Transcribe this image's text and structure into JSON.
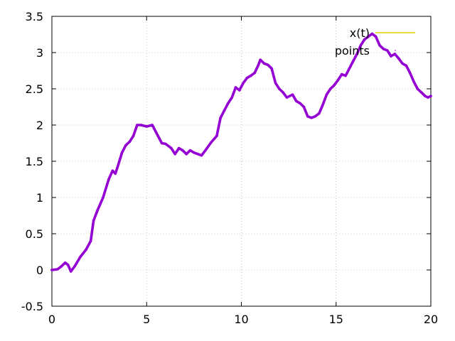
{
  "chart_data": {
    "type": "line",
    "title": "",
    "xlabel": "",
    "ylabel": "",
    "xlim": [
      0,
      20
    ],
    "ylim": [
      -0.5,
      3.5
    ],
    "xticks": [
      0,
      5,
      10,
      15,
      20
    ],
    "xtick_labels": [
      "0",
      "5",
      "10",
      "15",
      "20"
    ],
    "yticks": [
      -0.5,
      0,
      0.5,
      1,
      1.5,
      2,
      2.5,
      3,
      3.5
    ],
    "ytick_labels": [
      "-0.5",
      "0",
      "0.5",
      "1",
      "1.5",
      "2",
      "2.5",
      "3",
      "3.5"
    ],
    "grid": true,
    "legend_position": "top-right",
    "series": [
      {
        "name": "x(t)",
        "color": "#e6d200",
        "style": "line",
        "x": [
          0,
          0.3,
          0.5,
          0.7,
          0.85,
          1.0,
          1.2,
          1.5,
          1.8,
          2.05,
          2.2,
          2.4,
          2.7,
          3.0,
          3.2,
          3.35,
          3.5,
          3.7,
          3.9,
          4.1,
          4.3,
          4.5,
          4.7,
          5.0,
          5.3,
          5.6,
          5.8,
          6.0,
          6.3,
          6.5,
          6.7,
          6.9,
          7.1,
          7.3,
          7.5,
          7.7,
          7.9,
          8.1,
          8.4,
          8.7,
          8.9,
          9.1,
          9.3,
          9.5,
          9.7,
          9.9,
          10.1,
          10.3,
          10.5,
          10.7,
          10.9,
          11.0,
          11.2,
          11.4,
          11.6,
          11.8,
          12.0,
          12.2,
          12.4,
          12.7,
          12.9,
          13.1,
          13.3,
          13.5,
          13.7,
          13.9,
          14.1,
          14.3,
          14.5,
          14.7,
          14.9,
          15.1,
          15.3,
          15.5,
          15.7,
          15.9,
          16.1,
          16.3,
          16.5,
          16.7,
          16.9,
          17.1,
          17.3,
          17.5,
          17.7,
          17.9,
          18.1,
          18.3,
          18.5,
          18.7,
          18.9,
          19.1,
          19.3,
          19.5,
          19.7,
          19.85,
          20.0
        ],
        "y": [
          0,
          0.01,
          0.05,
          0.1,
          0.07,
          -0.02,
          0.05,
          0.18,
          0.28,
          0.4,
          0.68,
          0.82,
          1.0,
          1.25,
          1.37,
          1.33,
          1.45,
          1.62,
          1.72,
          1.77,
          1.85,
          2.0,
          2.0,
          1.98,
          2.0,
          1.85,
          1.75,
          1.74,
          1.68,
          1.6,
          1.68,
          1.65,
          1.6,
          1.65,
          1.62,
          1.6,
          1.58,
          1.65,
          1.76,
          1.85,
          2.1,
          2.2,
          2.3,
          2.38,
          2.52,
          2.48,
          2.58,
          2.65,
          2.68,
          2.72,
          2.83,
          2.9,
          2.85,
          2.83,
          2.78,
          2.58,
          2.5,
          2.45,
          2.38,
          2.42,
          2.33,
          2.3,
          2.25,
          2.12,
          2.1,
          2.12,
          2.16,
          2.28,
          2.42,
          2.5,
          2.55,
          2.62,
          2.7,
          2.68,
          2.78,
          2.88,
          2.98,
          3.1,
          3.18,
          3.22,
          3.26,
          3.22,
          3.1,
          3.05,
          3.03,
          2.95,
          2.98,
          2.92,
          2.85,
          2.82,
          2.72,
          2.6,
          2.5,
          2.45,
          2.4,
          2.38,
          2.4
        ]
      },
      {
        "name": "points",
        "color": "#9400d3",
        "style": "points",
        "x": [
          0,
          0.3,
          0.5,
          0.7,
          0.85,
          1.0,
          1.2,
          1.5,
          1.8,
          2.05,
          2.2,
          2.4,
          2.7,
          3.0,
          3.2,
          3.35,
          3.5,
          3.7,
          3.9,
          4.1,
          4.3,
          4.5,
          4.7,
          5.0,
          5.3,
          5.6,
          5.8,
          6.0,
          6.3,
          6.5,
          6.7,
          6.9,
          7.1,
          7.3,
          7.5,
          7.7,
          7.9,
          8.1,
          8.4,
          8.7,
          8.9,
          9.1,
          9.3,
          9.5,
          9.7,
          9.9,
          10.1,
          10.3,
          10.5,
          10.7,
          10.9,
          11.0,
          11.2,
          11.4,
          11.6,
          11.8,
          12.0,
          12.2,
          12.4,
          12.7,
          12.9,
          13.1,
          13.3,
          13.5,
          13.7,
          13.9,
          14.1,
          14.3,
          14.5,
          14.7,
          14.9,
          15.1,
          15.3,
          15.5,
          15.7,
          15.9,
          16.1,
          16.3,
          16.5,
          16.7,
          16.9,
          17.1,
          17.3,
          17.5,
          17.7,
          17.9,
          18.1,
          18.3,
          18.5,
          18.7,
          18.9,
          19.1,
          19.3,
          19.5,
          19.7,
          19.85,
          20.0
        ],
        "y": [
          0,
          0.01,
          0.05,
          0.1,
          0.07,
          -0.02,
          0.05,
          0.18,
          0.28,
          0.4,
          0.68,
          0.82,
          1.0,
          1.25,
          1.37,
          1.33,
          1.45,
          1.62,
          1.72,
          1.77,
          1.85,
          2.0,
          2.0,
          1.98,
          2.0,
          1.85,
          1.75,
          1.74,
          1.68,
          1.6,
          1.68,
          1.65,
          1.6,
          1.65,
          1.62,
          1.6,
          1.58,
          1.65,
          1.76,
          1.85,
          2.1,
          2.2,
          2.3,
          2.38,
          2.52,
          2.48,
          2.58,
          2.65,
          2.68,
          2.72,
          2.83,
          2.9,
          2.85,
          2.83,
          2.78,
          2.58,
          2.5,
          2.45,
          2.38,
          2.42,
          2.33,
          2.3,
          2.25,
          2.12,
          2.1,
          2.12,
          2.16,
          2.28,
          2.42,
          2.5,
          2.55,
          2.62,
          2.7,
          2.68,
          2.78,
          2.88,
          2.98,
          3.1,
          3.18,
          3.22,
          3.26,
          3.22,
          3.1,
          3.05,
          3.03,
          2.95,
          2.98,
          2.92,
          2.85,
          2.82,
          2.72,
          2.6,
          2.5,
          2.45,
          2.4,
          2.38,
          2.4
        ]
      }
    ]
  }
}
